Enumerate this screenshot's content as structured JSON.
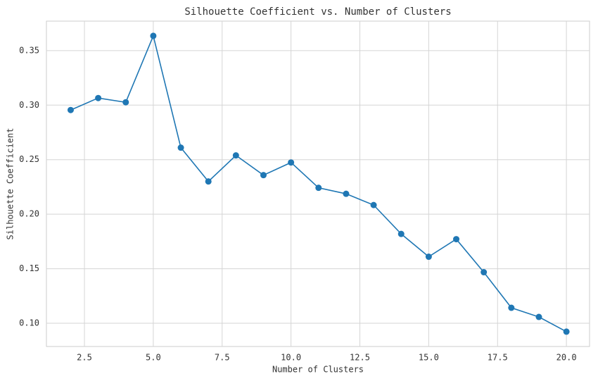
{
  "chart_data": {
    "type": "line",
    "title": "Silhouette Coefficient vs. Number of Clusters",
    "x_label": "Number of Clusters",
    "y_label": "Silhouette Coefficient",
    "x": [
      2,
      3,
      4,
      5,
      6,
      7,
      8,
      9,
      10,
      11,
      12,
      13,
      14,
      15,
      16,
      17,
      18,
      19,
      20
    ],
    "series": [
      {
        "color": "#1f77b4",
        "values": [
          0.2955,
          0.3065,
          0.3026,
          0.3635,
          0.261,
          0.23,
          0.2539,
          0.2358,
          0.2474,
          0.2242,
          0.2187,
          0.2084,
          0.1819,
          0.161,
          0.1771,
          0.1468,
          0.1142,
          0.1058,
          0.0923
        ]
      }
    ],
    "xlim": [
      1.12,
      20.84
    ],
    "ylim": [
      0.0787,
      0.377
    ],
    "xticks": [
      2.5,
      {
        "value": 5,
        "label": "5.0"
      },
      7.5,
      {
        "value": 10,
        "label": "10.0"
      },
      12.5,
      {
        "value": 15,
        "label": "15.0"
      },
      17.5,
      {
        "value": 20,
        "label": "20.0"
      }
    ],
    "yticks": [
      {
        "value": 0.1,
        "label": "0.10"
      },
      0.15,
      {
        "value": 0.2,
        "label": "0.20"
      },
      0.25,
      {
        "value": 0.3,
        "label": "0.30"
      },
      0.35
    ],
    "grid": true
  }
}
